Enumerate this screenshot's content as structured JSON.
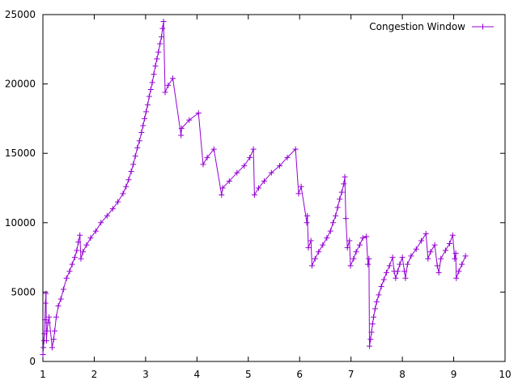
{
  "chart_data": {
    "type": "line",
    "xlim": [
      1,
      10
    ],
    "ylim": [
      0,
      25000
    ],
    "x_ticks": [
      1,
      2,
      3,
      4,
      5,
      6,
      7,
      8,
      9,
      10
    ],
    "y_ticks": [
      0,
      5000,
      10000,
      15000,
      20000,
      25000
    ],
    "grid": false,
    "legend_position": "top-right",
    "series_color": "#9400d3",
    "series": [
      {
        "name": "Congestion Window",
        "marker": "plus",
        "points": [
          [
            1.0,
            500
          ],
          [
            1.01,
            1000
          ],
          [
            1.02,
            1500
          ],
          [
            1.03,
            2000
          ],
          [
            1.04,
            3000
          ],
          [
            1.05,
            4200
          ],
          [
            1.06,
            4900
          ],
          [
            1.07,
            1500
          ],
          [
            1.08,
            2200
          ],
          [
            1.1,
            2800
          ],
          [
            1.12,
            3200
          ],
          [
            1.18,
            1000
          ],
          [
            1.21,
            1600
          ],
          [
            1.23,
            2200
          ],
          [
            1.26,
            3200
          ],
          [
            1.3,
            4000
          ],
          [
            1.35,
            4500
          ],
          [
            1.4,
            5200
          ],
          [
            1.46,
            6000
          ],
          [
            1.52,
            6500
          ],
          [
            1.57,
            7000
          ],
          [
            1.62,
            7500
          ],
          [
            1.66,
            8000
          ],
          [
            1.69,
            8600
          ],
          [
            1.72,
            9100
          ],
          [
            1.74,
            7400
          ],
          [
            1.78,
            7900
          ],
          [
            1.85,
            8400
          ],
          [
            1.93,
            8900
          ],
          [
            2.03,
            9400
          ],
          [
            2.13,
            10000
          ],
          [
            2.25,
            10500
          ],
          [
            2.36,
            11000
          ],
          [
            2.46,
            11500
          ],
          [
            2.56,
            12100
          ],
          [
            2.62,
            12600
          ],
          [
            2.67,
            13100
          ],
          [
            2.72,
            13700
          ],
          [
            2.76,
            14200
          ],
          [
            2.8,
            14800
          ],
          [
            2.84,
            15400
          ],
          [
            2.88,
            15900
          ],
          [
            2.92,
            16500
          ],
          [
            2.95,
            17000
          ],
          [
            2.98,
            17500
          ],
          [
            3.01,
            18000
          ],
          [
            3.04,
            18500
          ],
          [
            3.07,
            19100
          ],
          [
            3.1,
            19600
          ],
          [
            3.13,
            20100
          ],
          [
            3.16,
            20700
          ],
          [
            3.19,
            21300
          ],
          [
            3.22,
            21800
          ],
          [
            3.25,
            22300
          ],
          [
            3.28,
            22900
          ],
          [
            3.31,
            23400
          ],
          [
            3.33,
            24000
          ],
          [
            3.35,
            24500
          ],
          [
            3.38,
            19400
          ],
          [
            3.44,
            19900
          ],
          [
            3.53,
            20400
          ],
          [
            3.69,
            16300
          ],
          [
            3.7,
            16800
          ],
          [
            3.85,
            17400
          ],
          [
            4.03,
            17900
          ],
          [
            4.12,
            14200
          ],
          [
            4.2,
            14700
          ],
          [
            4.33,
            15300
          ],
          [
            4.48,
            12000
          ],
          [
            4.5,
            12500
          ],
          [
            4.63,
            13000
          ],
          [
            4.78,
            13600
          ],
          [
            4.92,
            14100
          ],
          [
            5.03,
            14700
          ],
          [
            5.1,
            15300
          ],
          [
            5.12,
            12000
          ],
          [
            5.2,
            12500
          ],
          [
            5.31,
            13000
          ],
          [
            5.45,
            13600
          ],
          [
            5.61,
            14100
          ],
          [
            5.76,
            14700
          ],
          [
            5.92,
            15300
          ],
          [
            5.98,
            12100
          ],
          [
            6.03,
            12600
          ],
          [
            6.14,
            10000
          ],
          [
            6.15,
            10500
          ],
          [
            6.17,
            8200
          ],
          [
            6.22,
            8700
          ],
          [
            6.24,
            6900
          ],
          [
            6.3,
            7400
          ],
          [
            6.37,
            7900
          ],
          [
            6.45,
            8400
          ],
          [
            6.53,
            8900
          ],
          [
            6.6,
            9400
          ],
          [
            6.65,
            10000
          ],
          [
            6.7,
            10500
          ],
          [
            6.74,
            11100
          ],
          [
            6.78,
            11700
          ],
          [
            6.82,
            12200
          ],
          [
            6.86,
            12800
          ],
          [
            6.88,
            13300
          ],
          [
            6.9,
            10300
          ],
          [
            6.93,
            8200
          ],
          [
            6.97,
            8700
          ],
          [
            6.99,
            6900
          ],
          [
            7.05,
            7400
          ],
          [
            7.1,
            7900
          ],
          [
            7.17,
            8400
          ],
          [
            7.23,
            8900
          ],
          [
            7.3,
            9000
          ],
          [
            7.33,
            7000
          ],
          [
            7.35,
            7400
          ],
          [
            7.36,
            1100
          ],
          [
            7.38,
            1600
          ],
          [
            7.4,
            2100
          ],
          [
            7.42,
            2700
          ],
          [
            7.44,
            3200
          ],
          [
            7.47,
            3800
          ],
          [
            7.5,
            4300
          ],
          [
            7.54,
            4800
          ],
          [
            7.59,
            5400
          ],
          [
            7.64,
            5900
          ],
          [
            7.69,
            6400
          ],
          [
            7.75,
            6900
          ],
          [
            7.81,
            7500
          ],
          [
            7.84,
            6500
          ],
          [
            7.87,
            6000
          ],
          [
            7.91,
            6500
          ],
          [
            7.95,
            7000
          ],
          [
            8.0,
            7500
          ],
          [
            8.04,
            6500
          ],
          [
            8.06,
            6000
          ],
          [
            8.1,
            7000
          ],
          [
            8.17,
            7600
          ],
          [
            8.27,
            8100
          ],
          [
            8.37,
            8700
          ],
          [
            8.46,
            9200
          ],
          [
            8.5,
            7400
          ],
          [
            8.55,
            7900
          ],
          [
            8.63,
            8400
          ],
          [
            8.68,
            6900
          ],
          [
            8.71,
            6400
          ],
          [
            8.75,
            7400
          ],
          [
            8.84,
            8000
          ],
          [
            8.92,
            8500
          ],
          [
            8.98,
            9100
          ],
          [
            9.02,
            7400
          ],
          [
            9.04,
            7800
          ],
          [
            9.05,
            6000
          ],
          [
            9.1,
            6500
          ],
          [
            9.16,
            7000
          ],
          [
            9.23,
            7600
          ]
        ]
      }
    ]
  }
}
